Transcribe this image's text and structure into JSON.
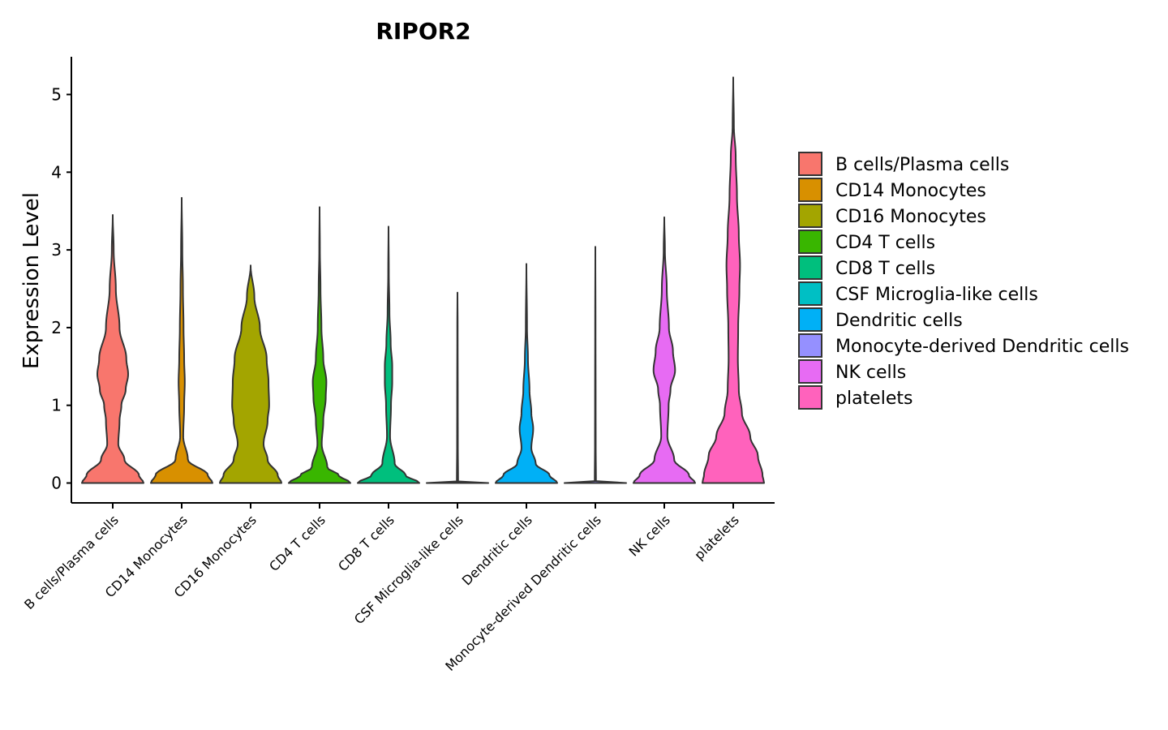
{
  "chart_data": {
    "type": "violin",
    "title": "RIPOR2",
    "xlabel": "",
    "ylabel": "Expression Level",
    "ylim": [
      -0.25,
      5.5
    ],
    "yticks": [
      0,
      1,
      2,
      3,
      4,
      5
    ],
    "categories": [
      "B cells/Plasma cells",
      "CD14 Monocytes",
      "CD16 Monocytes",
      "CD4 T cells",
      "CD8 T cells",
      "CSF Microglia-like cells",
      "Dendritic cells",
      "Monocyte-derived Dendritic cells",
      "NK cells",
      "platelets"
    ],
    "colors": [
      "#F8766D",
      "#D89000",
      "#A3A500",
      "#39B600",
      "#00BF7D",
      "#00BFC4",
      "#00B0F6",
      "#9590FF",
      "#E76BF3",
      "#FF62BC"
    ],
    "max_values": [
      3.45,
      3.67,
      2.8,
      3.55,
      3.3,
      2.45,
      2.82,
      3.04,
      3.42,
      5.22
    ],
    "density_profiles": [
      [
        [
          0,
          1
        ],
        [
          0.1,
          0.85
        ],
        [
          0.3,
          0.38
        ],
        [
          0.5,
          0.18
        ],
        [
          0.8,
          0.22
        ],
        [
          1.0,
          0.28
        ],
        [
          1.2,
          0.42
        ],
        [
          1.4,
          0.5
        ],
        [
          1.6,
          0.44
        ],
        [
          2.0,
          0.22
        ],
        [
          2.5,
          0.1
        ],
        [
          3.0,
          0.03
        ],
        [
          3.45,
          0
        ]
      ],
      [
        [
          0,
          1
        ],
        [
          0.1,
          0.85
        ],
        [
          0.3,
          0.2
        ],
        [
          0.6,
          0.05
        ],
        [
          1.0,
          0.08
        ],
        [
          1.3,
          0.1
        ],
        [
          1.6,
          0.08
        ],
        [
          2.0,
          0.06
        ],
        [
          2.5,
          0.04
        ],
        [
          3.0,
          0.02
        ],
        [
          3.67,
          0
        ]
      ],
      [
        [
          0,
          1
        ],
        [
          0.1,
          0.88
        ],
        [
          0.3,
          0.55
        ],
        [
          0.5,
          0.42
        ],
        [
          0.8,
          0.55
        ],
        [
          1.0,
          0.6
        ],
        [
          1.3,
          0.58
        ],
        [
          1.6,
          0.52
        ],
        [
          2.0,
          0.3
        ],
        [
          2.4,
          0.12
        ],
        [
          2.8,
          0
        ]
      ],
      [
        [
          0,
          1
        ],
        [
          0.1,
          0.62
        ],
        [
          0.2,
          0.25
        ],
        [
          0.5,
          0.07
        ],
        [
          0.8,
          0.12
        ],
        [
          1.1,
          0.2
        ],
        [
          1.3,
          0.22
        ],
        [
          1.6,
          0.12
        ],
        [
          2.0,
          0.06
        ],
        [
          2.5,
          0.03
        ],
        [
          3.0,
          0.01
        ],
        [
          3.55,
          0
        ]
      ],
      [
        [
          0,
          1
        ],
        [
          0.1,
          0.55
        ],
        [
          0.25,
          0.2
        ],
        [
          0.6,
          0.05
        ],
        [
          1.0,
          0.08
        ],
        [
          1.3,
          0.12
        ],
        [
          1.5,
          0.12
        ],
        [
          1.8,
          0.07
        ],
        [
          2.2,
          0.03
        ],
        [
          2.7,
          0.01
        ],
        [
          3.3,
          0
        ]
      ],
      [
        [
          0,
          1
        ],
        [
          0.008,
          0.02
        ],
        [
          0.5,
          0.012
        ],
        [
          1.0,
          0.01
        ],
        [
          2.0,
          0.006
        ],
        [
          2.45,
          0
        ]
      ],
      [
        [
          0,
          1
        ],
        [
          0.1,
          0.75
        ],
        [
          0.25,
          0.3
        ],
        [
          0.45,
          0.16
        ],
        [
          0.7,
          0.22
        ],
        [
          0.9,
          0.16
        ],
        [
          1.2,
          0.1
        ],
        [
          1.6,
          0.05
        ],
        [
          2.0,
          0.02
        ],
        [
          2.82,
          0
        ]
      ],
      [
        [
          0,
          1
        ],
        [
          0.008,
          0.02
        ],
        [
          0.5,
          0.012
        ],
        [
          1.0,
          0.01
        ],
        [
          2.0,
          0.006
        ],
        [
          3.04,
          0
        ]
      ],
      [
        [
          0,
          1
        ],
        [
          0.1,
          0.8
        ],
        [
          0.3,
          0.32
        ],
        [
          0.6,
          0.1
        ],
        [
          1.0,
          0.14
        ],
        [
          1.2,
          0.2
        ],
        [
          1.45,
          0.35
        ],
        [
          1.7,
          0.28
        ],
        [
          2.0,
          0.15
        ],
        [
          2.5,
          0.08
        ],
        [
          3.0,
          0.02
        ],
        [
          3.42,
          0
        ]
      ],
      [
        [
          0,
          1
        ],
        [
          0.1,
          0.95
        ],
        [
          0.35,
          0.8
        ],
        [
          0.6,
          0.55
        ],
        [
          0.9,
          0.28
        ],
        [
          1.2,
          0.18
        ],
        [
          1.6,
          0.15
        ],
        [
          2.0,
          0.16
        ],
        [
          2.5,
          0.2
        ],
        [
          2.8,
          0.22
        ],
        [
          3.2,
          0.18
        ],
        [
          3.7,
          0.12
        ],
        [
          4.2,
          0.08
        ],
        [
          4.6,
          0.02
        ],
        [
          5.22,
          0
        ]
      ]
    ]
  }
}
